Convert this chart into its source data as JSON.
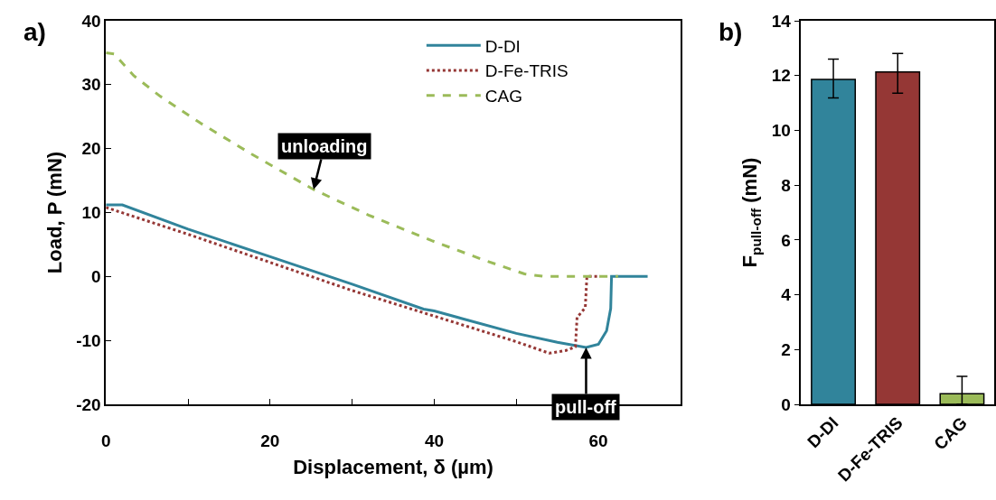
{
  "chart_data": [
    {
      "type": "line",
      "xlabel": "Displacement, δ (µm)",
      "ylabel": "Load, P (mN)",
      "xlim": [
        0,
        70
      ],
      "xticks": [
        0,
        {
          "value": 10,
          "label": null
        },
        20,
        {
          "value": 30,
          "label": null
        },
        40,
        {
          "value": 50,
          "label": null
        },
        60,
        {
          "value": 70,
          "label": null
        }
      ],
      "ylim": [
        -20,
        40
      ],
      "yticks": [
        -20,
        -10,
        0,
        10,
        20,
        30,
        40
      ],
      "legend": "top right",
      "marker": "none",
      "series": [
        {
          "name": "D-DI",
          "color": "#31849b",
          "line_style": "solid",
          "x": [
            0,
            2,
            10,
            20,
            30,
            38.7,
            40,
            50,
            55,
            58.5,
            60,
            61,
            61.5,
            61.6,
            66
          ],
          "values": [
            11.2,
            11.2,
            7.4,
            3.1,
            -1.2,
            -5.1,
            -5.4,
            -8.9,
            -10.3,
            -11.1,
            -10.6,
            -8.5,
            -5,
            0,
            0
          ]
        },
        {
          "name": "D-Fe-TRIS",
          "color": "#953735",
          "line_style": "dotted",
          "x": [
            0,
            10,
            20,
            30,
            40,
            50,
            54,
            56,
            57.2,
            57.4,
            58.4,
            58.6,
            60.2
          ],
          "values": [
            10.8,
            6.6,
            2.2,
            -2.2,
            -6.2,
            -10.2,
            -12,
            -11.6,
            -11,
            -6.4,
            -4.9,
            0,
            0.0
          ]
        },
        {
          "name": "CAG",
          "color": "#9bbb59",
          "line_style": "dashed",
          "x": [
            0,
            1,
            3.4,
            6.6,
            11.5,
            17.8,
            25.3,
            32,
            39.7,
            46.2,
            51,
            53.4,
            62.4
          ],
          "values": [
            35,
            34.8,
            31.4,
            28.2,
            24,
            19.1,
            13.6,
            9.6,
            5.6,
            2.5,
            0.4,
            0,
            0
          ]
        }
      ],
      "annotations": [
        "a)",
        {
          "text": "unloading",
          "x": 25.3,
          "y": 13.6
        },
        {
          "text": "pull-off",
          "x": 58.5,
          "y": -11.1
        }
      ]
    },
    {
      "type": "bar",
      "ylabel": "F$_{pull-off}$ (mN)",
      "categories": [
        "D-DI",
        "D-Fe-TRIS",
        "CAG"
      ],
      "values": [
        11.86,
        12.13,
        0.39
      ],
      "colors": [
        "#31849b",
        "#953735",
        "#9bbb59"
      ],
      "errors": [
        [
          11.18,
          12.6
        ],
        [
          11.36,
          12.81
        ],
        [
          0,
          1.02
        ]
      ],
      "ylim": [
        0,
        14
      ],
      "yticks": [
        0,
        2,
        4,
        6,
        8,
        10,
        12,
        14
      ],
      "legend": false,
      "annotations": [
        "b)"
      ]
    }
  ]
}
